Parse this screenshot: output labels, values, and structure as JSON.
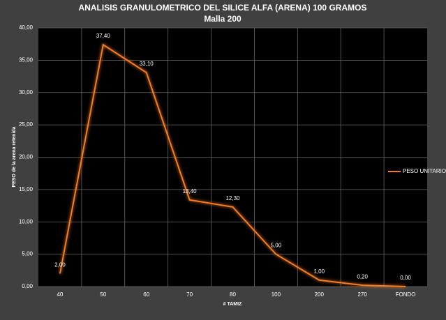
{
  "chart_data": {
    "type": "line",
    "title": "ANALISIS GRANULOMETRICO DEL SILICE ALFA (ARENA) 100 GRAMOS",
    "subtitle": "Malla 200",
    "x_label": "# TAMIZ",
    "y_label": "PESO de la arena retenida",
    "categories": [
      "40",
      "50",
      "60",
      "70",
      "80",
      "100",
      "200",
      "270",
      "FONDO"
    ],
    "series": [
      {
        "name": "PESO UNITARIO",
        "color": "#f47c20",
        "values": [
          2,
          37.4,
          33.1,
          13.4,
          12.3,
          5,
          1,
          0.2,
          0
        ],
        "value_labels": [
          "2,00",
          "37,40",
          "33,10",
          "13,40",
          "12,30",
          "5,00",
          "1,00",
          "0,20",
          "0,00"
        ]
      }
    ],
    "ylim": [
      0,
      40
    ],
    "yticks": [
      {
        "value": 0,
        "label": "0,00"
      },
      {
        "value": 5,
        "label": "5,00"
      },
      {
        "value": 10,
        "label": "10,00"
      },
      {
        "value": 15,
        "label": "15,00"
      },
      {
        "value": 20,
        "label": "20,00"
      },
      {
        "value": 25,
        "label": "25,00"
      },
      {
        "value": 30,
        "label": "30,00"
      },
      {
        "value": 35,
        "label": "35,00"
      },
      {
        "value": 40,
        "label": "40,00"
      }
    ],
    "grid": true,
    "legend": "right"
  }
}
